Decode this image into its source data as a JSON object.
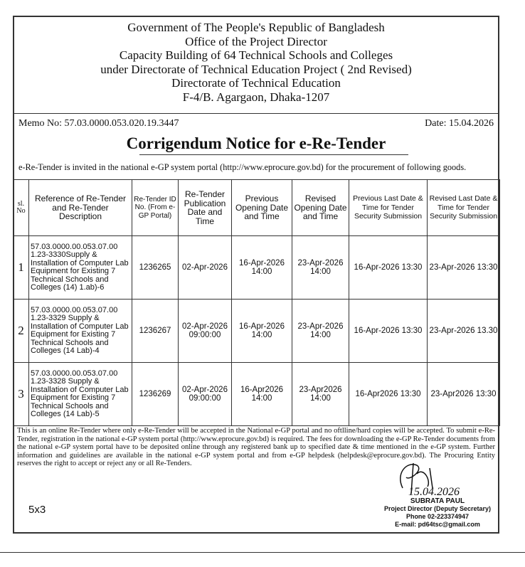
{
  "header": {
    "lines": [
      "Government of The People's Republic of Bangladesh",
      "Office of the Project Director",
      "Capacity Building of 64 Technical Schools and Colleges",
      "under Directorate of Technical Education Project ( 2nd Revised)",
      "Directorate of Technical Education",
      "F-4/B. Agargaon, Dhaka-1207"
    ]
  },
  "memo": "Memo No: 57.03.0000.053.020.19.3447",
  "date": "Date: 15.04.2026",
  "title": "Corrigendum Notice for e-Re-Tender",
  "intro": "e-Re-Tender is invited in the national e-GP system portal (http://www.eprocure.gov.bd) for the procurement of following goods.",
  "table": {
    "headers": [
      "sl. No",
      "Reference of Re-Tender and Re-Tender Description",
      "Re-Tender ID No. (From e- GP Portal)",
      "Re-Tender Publication Date and Time",
      "Previous Opening Date and Time",
      "Revised Opening Date and Time",
      "Previous Last Date & Time for Tender Security Submission",
      "Revised Last Date & Time for Tender Security Submission"
    ],
    "rows": [
      [
        "1",
        "57.03.0000.00.053.07.00 1.23-3330Supply & Installation of Computer Lab Equipment for Existing 7 Technical Schools and Colleges (14) 1.ab)-6",
        "1236265",
        "02-Apr-2026",
        "16-Apr-2026 14:00",
        "23-Apr-2026 14:00",
        "16-Apr-2026 13:30",
        "23-Apr-2026 13:30"
      ],
      [
        "2",
        "57.03.0000.00.053.07.00 1.23-3329 Supply & Installation of Computer Lab Equipment for Existing 7 Technical Schools and Colleges (14 Lab)-4",
        "1236267",
        "02-Apr-2026 09:00:00",
        "16-Apr-2026 14:00",
        "23-Apr-2026 14:00",
        "16-Apr-2026 13:30",
        "23-Apr-2026 13.30"
      ],
      [
        "3",
        "57.03.0000.00.053.07.00 1.23-3328 Supply & Installation of Computer Lab Equipment for Existing 7 Technical Schools and Colleges (14 Lab)-5",
        "1236269",
        "02-Apr-2026 09:00:00",
        "16-Apr2026 14:00",
        "23-Apr2026 14:00",
        "16-Apr2026 13:30",
        "23-Apr2026 13:30"
      ]
    ]
  },
  "note": "This is an online Re-Tender where only e-Re-Tender will be accepted in the National e-GP portal and no oftlline/hard copies will be accepted. To submit e-Re-Tender, registration in the national e-GP system portal (http://www.eprocure.gov.bd) is required. The fees for downloading the e-GP Re-Tender documents from the national e-GP system portal have to be deposited online through any registered bank up to specified date & time mentioned in the e-GP system. Further information and guidelines are available in the national e-GP system portal and from e-GP helpdesk (helpdesk@eprocure.gov.bd). The Procuring Entity reserves the right to accept or reject any or all Re-Tenders.",
  "signature": {
    "date": "15.04.2026",
    "name": "SUBRATA PAUL",
    "designation": "Project Director (Deputy Secretary)",
    "phone": "Phone 02-223374947",
    "email": "E-mail: pd64tsc@gmail.com"
  },
  "code": "5x3"
}
